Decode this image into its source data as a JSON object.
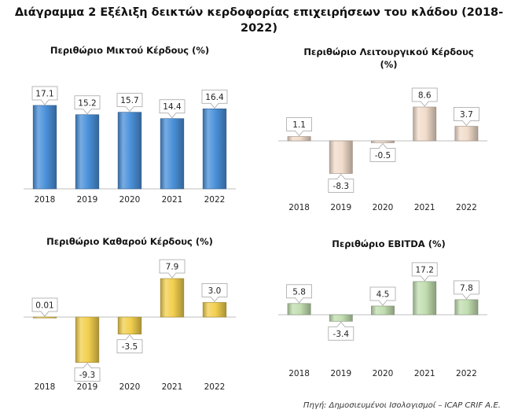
{
  "title_line1": "Διάγραμμα 2 Εξέλιξη δεικτών κερδοφορίας επιχειρήσεων του κλάδου (2018-",
  "title_line2": "2022)",
  "source": "Πηγή: Δημοσιευμένοι Ισολογισμοί – ICAP CRIF A.E.",
  "chart_data": [
    {
      "type": "bar",
      "title": "Περιθώριο Μικτού Κέρδους (%)",
      "categories": [
        "2018",
        "2019",
        "2020",
        "2021",
        "2022"
      ],
      "values": [
        17.1,
        15.2,
        15.7,
        14.4,
        16.4
      ],
      "labels": [
        "17.1",
        "15.2",
        "15.7",
        "14.4",
        "16.4"
      ],
      "color": "#4a90d9",
      "ylim": [
        0,
        20
      ],
      "grid": false,
      "legend": "none"
    },
    {
      "type": "bar",
      "title": "Περιθώριο Λειτουργικού Κέρδους (%)",
      "categories": [
        "2018",
        "2019",
        "2020",
        "2021",
        "2022"
      ],
      "values": [
        1.1,
        -8.3,
        -0.5,
        8.6,
        3.7
      ],
      "labels": [
        "1.1",
        "-8.3",
        "-0.5",
        "8.6",
        "3.7"
      ],
      "color": "#f2dccb",
      "ylim": [
        -10,
        10
      ],
      "grid": false,
      "legend": "none"
    },
    {
      "type": "bar",
      "title": "Περιθώριο Καθαρού Κέρδους (%)",
      "categories": [
        "2018",
        "2019",
        "2020",
        "2021",
        "2022"
      ],
      "values": [
        0.01,
        -9.3,
        -3.5,
        7.9,
        3.0
      ],
      "labels": [
        "0.01",
        "-9.3",
        "-3.5",
        "7.9",
        "3.0"
      ],
      "color": "#f2cf4e",
      "ylim": [
        -10,
        10
      ],
      "grid": false,
      "legend": "none"
    },
    {
      "type": "bar",
      "title": "Περιθώριο EBITDA (%)",
      "categories": [
        "2018",
        "2019",
        "2020",
        "2021",
        "2022"
      ],
      "values": [
        5.8,
        -3.4,
        4.5,
        17.2,
        7.8
      ],
      "labels": [
        "5.8",
        "-3.4",
        "4.5",
        "17.2",
        "7.8"
      ],
      "color": "#c2deb0",
      "ylim": [
        -5,
        20
      ],
      "grid": false,
      "legend": "none"
    }
  ]
}
